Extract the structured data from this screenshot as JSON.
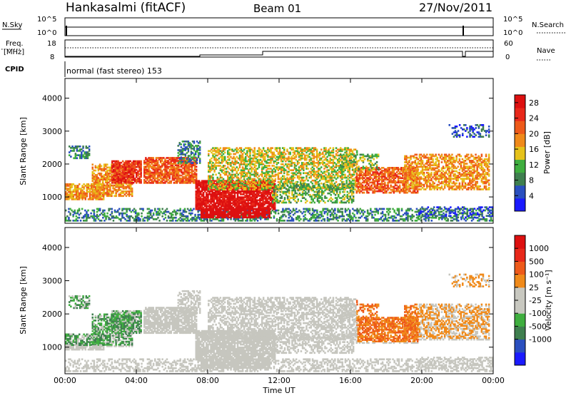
{
  "header": {
    "station": "Hankasalmi (fitACF)",
    "beam": "Beam 01",
    "date": "27/Nov/2011"
  },
  "top_panels": {
    "nsky_label": "N.Sky",
    "nsky_ticks": [
      "10^5",
      "10^0"
    ],
    "nsearch_label": "N.Search",
    "nsearch_ticks": [
      "10^5",
      "10^0"
    ],
    "freq_label_line1": "Freq.",
    "freq_label_line2": "[MHz]",
    "freq_ticks": [
      "18",
      "8"
    ],
    "nave_label": "Nave",
    "nave_ticks": [
      "60",
      "0"
    ],
    "cpid_label": "CPID",
    "cpid_text": "normal (fast stereo) 153"
  },
  "colors": {
    "power_scale": [
      "#1a1aff",
      "#2a4fbf",
      "#3f7f4f",
      "#3fae3f",
      "#e6c21a",
      "#f08a1a",
      "#ee5a1a",
      "#e8281a",
      "#dd1010"
    ],
    "velocity_scale": [
      "#1a1aff",
      "#2a4fbf",
      "#3f7f4f",
      "#3fae3f",
      "#c8c8c0",
      "#c8c8c0",
      "#f08a1a",
      "#ee5a1a",
      "#e8281a",
      "#dd1010"
    ],
    "ground_scatter": "#c6c6bf"
  },
  "chart_data": [
    {
      "type": "heatmap",
      "name": "power",
      "ylabel": "Slant Range [km]",
      "y_ticks": [
        "1000",
        "2000",
        "3000",
        "4000"
      ],
      "ylim": [
        200,
        4600
      ],
      "colorbar_label": "Power [dB]",
      "colorbar_ticks": [
        "4",
        "8",
        "12",
        "16",
        "20",
        "24",
        "28"
      ],
      "clim": [
        0,
        30
      ]
    },
    {
      "type": "heatmap",
      "name": "velocity",
      "ylabel": "Slant Range [km]",
      "y_ticks": [
        "1000",
        "2000",
        "3000",
        "4000"
      ],
      "ylim": [
        200,
        4600
      ],
      "colorbar_label": "Velocity [m s⁻¹]",
      "colorbar_ticks": [
        "1000",
        "500",
        "100",
        "25",
        "-25",
        "-100",
        "-500",
        "-1000"
      ],
      "x_ticks": [
        "00:00",
        "04:00",
        "08:00",
        "12:00",
        "16:00",
        "20:00",
        "00:00"
      ],
      "xlabel": "Time UT"
    }
  ]
}
